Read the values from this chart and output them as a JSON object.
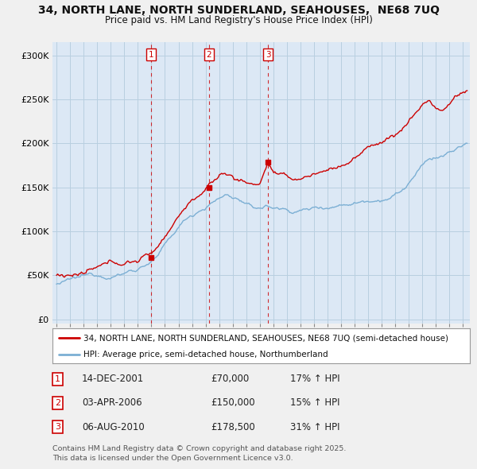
{
  "title_line1": "34, NORTH LANE, NORTH SUNDERLAND, SEAHOUSES,  NE68 7UQ",
  "title_line2": "Price paid vs. HM Land Registry's House Price Index (HPI)",
  "ylabel_ticks": [
    "£0",
    "£50K",
    "£100K",
    "£150K",
    "£200K",
    "£250K",
    "£300K"
  ],
  "ytick_values": [
    0,
    50000,
    100000,
    150000,
    200000,
    250000,
    300000
  ],
  "ylim": [
    -5000,
    315000
  ],
  "xlim_start": 1994.7,
  "xlim_end": 2025.5,
  "sale_color": "#cc0000",
  "hpi_color": "#7bafd4",
  "plot_bg_color": "#dce8f5",
  "grid_color": "#b8cfe0",
  "background_color": "#f0f0f0",
  "sale_label": "34, NORTH LANE, NORTH SUNDERLAND, SEAHOUSES, NE68 7UQ (semi-detached house)",
  "hpi_label": "HPI: Average price, semi-detached house, Northumberland",
  "transactions": [
    {
      "num": 1,
      "date": "14-DEC-2001",
      "year": 2001.96,
      "price": 70000,
      "pct": "17%",
      "dir": "↑"
    },
    {
      "num": 2,
      "date": "03-APR-2006",
      "year": 2006.25,
      "price": 150000,
      "pct": "15%",
      "dir": "↑"
    },
    {
      "num": 3,
      "date": "06-AUG-2010",
      "year": 2010.6,
      "price": 178500,
      "pct": "31%",
      "dir": "↑"
    }
  ],
  "footer_line1": "Contains HM Land Registry data © Crown copyright and database right 2025.",
  "footer_line2": "This data is licensed under the Open Government Licence v3.0."
}
